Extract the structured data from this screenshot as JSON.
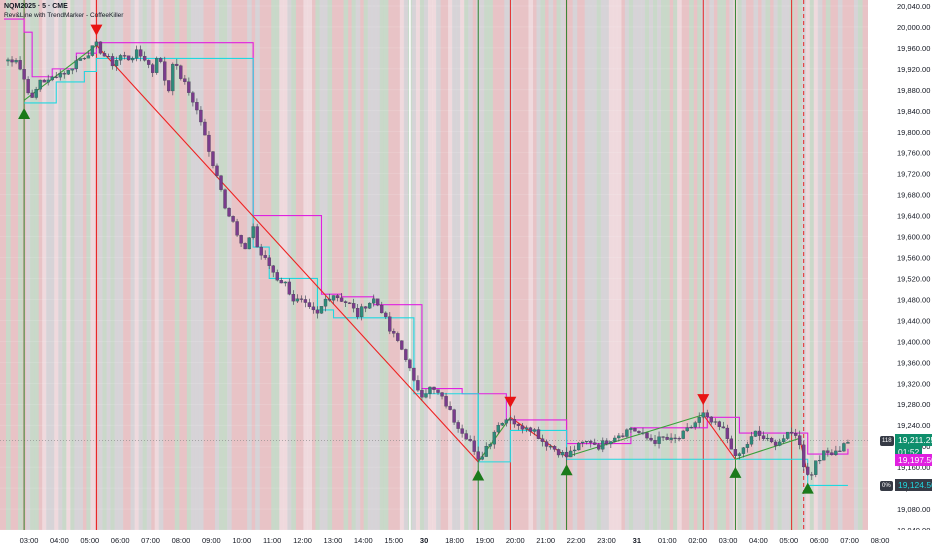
{
  "header": {
    "ticker": "NQM2025 · 5 · CME",
    "indicator": "Rev&Line with TrendMarker - CoffeeKiller"
  },
  "colors": {
    "bull": "#26a69a",
    "bear": "#ef5350",
    "wick": "#4a4f5c",
    "bullish_signal": "#1b7a1b",
    "bearish_signal": "#e81313",
    "magenta_level": "#e020e0",
    "cyan_level": "#20d8e0",
    "trend_down": "#ee2222",
    "trend_up": "#3aa03a",
    "bg_red": "#e8c3c6",
    "bg_green": "#c4dcc9",
    "bg_gray": "#d4d6d9"
  },
  "price_tags": {
    "current_price": "19,211.25",
    "countdown": "01:52",
    "magenta_level": "19,197.50",
    "cyan_level": "19,124.50",
    "mini_top": "118",
    "mini_bottom": "0%"
  },
  "chart_data": {
    "type": "candlestick",
    "title": "NQM2025 · 5 · CME",
    "ylim": [
      19040,
      20040
    ],
    "y_ticks": [
      "20,040.00",
      "20,000.00",
      "19,960.00",
      "19,920.00",
      "19,880.00",
      "19,840.00",
      "19,800.00",
      "19,760.00",
      "19,720.00",
      "19,680.00",
      "19,640.00",
      "19,600.00",
      "19,560.00",
      "19,520.00",
      "19,480.00",
      "19,440.00",
      "19,400.00",
      "19,360.00",
      "19,320.00",
      "19,280.00",
      "19,240.00",
      "19,200.00",
      "19,160.00",
      "19,120.00",
      "19,080.00",
      "19,040.00"
    ],
    "x_ticks": [
      "03:00",
      "04:00",
      "05:00",
      "06:00",
      "07:00",
      "08:00",
      "09:00",
      "10:00",
      "11:00",
      "12:00",
      "13:00",
      "14:00",
      "15:00",
      "30",
      "18:00",
      "19:00",
      "20:00",
      "21:00",
      "22:00",
      "23:00",
      "31",
      "01:00",
      "02:00",
      "03:00",
      "04:00",
      "05:00",
      "06:00",
      "07:00",
      "08:00"
    ],
    "price_path": [
      [
        0,
        19935
      ],
      [
        3,
        19940
      ],
      [
        5,
        19900
      ],
      [
        7,
        19860
      ],
      [
        8,
        19880
      ],
      [
        9,
        19900
      ],
      [
        11,
        19895
      ],
      [
        13,
        19910
      ],
      [
        16,
        19915
      ],
      [
        18,
        19935
      ],
      [
        20,
        19945
      ],
      [
        23,
        19965
      ],
      [
        25,
        19945
      ],
      [
        27,
        19930
      ],
      [
        29,
        19945
      ],
      [
        31,
        19940
      ],
      [
        33,
        19950
      ],
      [
        35,
        19940
      ],
      [
        37,
        19915
      ],
      [
        38,
        19945
      ],
      [
        39,
        19930
      ],
      [
        40,
        19900
      ],
      [
        41,
        19880
      ],
      [
        42,
        19935
      ],
      [
        43,
        19920
      ],
      [
        45,
        19890
      ],
      [
        47,
        19860
      ],
      [
        49,
        19820
      ],
      [
        51,
        19760
      ],
      [
        53,
        19720
      ],
      [
        55,
        19660
      ],
      [
        57,
        19630
      ],
      [
        58,
        19600
      ],
      [
        60,
        19570
      ],
      [
        61,
        19600
      ],
      [
        62,
        19620
      ],
      [
        63,
        19580
      ],
      [
        64,
        19565
      ],
      [
        66,
        19545
      ],
      [
        68,
        19520
      ],
      [
        70,
        19510
      ],
      [
        72,
        19480
      ],
      [
        74,
        19475
      ],
      [
        76,
        19460
      ],
      [
        78,
        19450
      ],
      [
        80,
        19480
      ],
      [
        82,
        19490
      ],
      [
        84,
        19480
      ],
      [
        86,
        19470
      ],
      [
        88,
        19450
      ],
      [
        90,
        19470
      ],
      [
        92,
        19480
      ],
      [
        94,
        19460
      ],
      [
        96,
        19420
      ],
      [
        98,
        19400
      ],
      [
        100,
        19370
      ],
      [
        102,
        19320
      ],
      [
        104,
        19300
      ],
      [
        106,
        19310
      ],
      [
        108,
        19300
      ],
      [
        110,
        19280
      ],
      [
        112,
        19250
      ],
      [
        114,
        19230
      ],
      [
        116,
        19210
      ],
      [
        117,
        19185
      ],
      [
        118,
        19170
      ],
      [
        119,
        19185
      ],
      [
        120,
        19200
      ],
      [
        121,
        19210
      ],
      [
        122,
        19230
      ],
      [
        124,
        19250
      ],
      [
        126,
        19255
      ],
      [
        127,
        19245
      ],
      [
        128,
        19235
      ],
      [
        130,
        19240
      ],
      [
        132,
        19230
      ],
      [
        134,
        19210
      ],
      [
        136,
        19200
      ],
      [
        138,
        19190
      ],
      [
        140,
        19180
      ],
      [
        142,
        19195
      ],
      [
        144,
        19205
      ],
      [
        146,
        19210
      ],
      [
        148,
        19200
      ],
      [
        150,
        19210
      ],
      [
        152,
        19220
      ],
      [
        154,
        19225
      ],
      [
        156,
        19235
      ],
      [
        158,
        19225
      ],
      [
        160,
        19215
      ],
      [
        162,
        19210
      ],
      [
        164,
        19215
      ],
      [
        166,
        19210
      ],
      [
        168,
        19215
      ],
      [
        170,
        19230
      ],
      [
        172,
        19245
      ],
      [
        174,
        19260
      ],
      [
        175,
        19250
      ],
      [
        177,
        19240
      ],
      [
        179,
        19230
      ],
      [
        181,
        19200
      ],
      [
        182,
        19175
      ],
      [
        183,
        19185
      ],
      [
        185,
        19205
      ],
      [
        187,
        19225
      ],
      [
        189,
        19215
      ],
      [
        191,
        19205
      ],
      [
        193,
        19210
      ],
      [
        195,
        19220
      ],
      [
        197,
        19225
      ],
      [
        198,
        19200
      ],
      [
        199,
        19165
      ],
      [
        200,
        19150
      ],
      [
        201,
        19145
      ],
      [
        202,
        19175
      ],
      [
        204,
        19185
      ],
      [
        206,
        19190
      ],
      [
        208,
        19195
      ],
      [
        210,
        19211
      ]
    ],
    "signals": [
      {
        "type": "bullish",
        "index": 5,
        "price": 19855
      },
      {
        "type": "bearish",
        "index": 23,
        "price": 19970
      },
      {
        "type": "bullish",
        "index": 118,
        "price": 19165
      },
      {
        "type": "bearish",
        "index": 126,
        "price": 19260
      },
      {
        "type": "bullish",
        "index": 140,
        "price": 19175
      },
      {
        "type": "bearish",
        "index": 174,
        "price": 19265
      },
      {
        "type": "bullish",
        "index": 182,
        "price": 19170
      },
      {
        "type": "bullish",
        "index": 200,
        "price": 19140
      }
    ],
    "trend_lines": [
      {
        "type": "up",
        "from": [
          5,
          19860
        ],
        "to": [
          23,
          19965
        ]
      },
      {
        "type": "down",
        "from": [
          23,
          19965
        ],
        "to": [
          118,
          19170
        ]
      },
      {
        "type": "up",
        "from": [
          118,
          19170
        ],
        "to": [
          126,
          19255
        ]
      },
      {
        "type": "down",
        "from": [
          126,
          19255
        ],
        "to": [
          140,
          19180
        ]
      },
      {
        "type": "up",
        "from": [
          140,
          19180
        ],
        "to": [
          174,
          19260
        ]
      },
      {
        "type": "down",
        "from": [
          174,
          19260
        ],
        "to": [
          182,
          19175
        ]
      },
      {
        "type": "up",
        "from": [
          182,
          19175
        ],
        "to": [
          198,
          19215
        ]
      },
      {
        "type": "down",
        "from": [
          198,
          19215
        ],
        "to": [
          200,
          19145
        ]
      }
    ],
    "magenta_steps": [
      [
        0,
        20015
      ],
      [
        5,
        19990
      ],
      [
        7,
        19905
      ],
      [
        12,
        19920
      ],
      [
        18,
        19950
      ],
      [
        23,
        19970
      ],
      [
        45,
        19970
      ],
      [
        61,
        19970
      ],
      [
        62,
        19640
      ],
      [
        78,
        19640
      ],
      [
        79,
        19490
      ],
      [
        82,
        19490
      ],
      [
        84,
        19485
      ],
      [
        90,
        19485
      ],
      [
        92,
        19470
      ],
      [
        103,
        19470
      ],
      [
        104,
        19310
      ],
      [
        113,
        19310
      ],
      [
        114,
        19300
      ],
      [
        124,
        19300
      ],
      [
        125,
        19250
      ],
      [
        129,
        19250
      ],
      [
        130,
        19250
      ],
      [
        139,
        19250
      ],
      [
        140,
        19205
      ],
      [
        154,
        19205
      ],
      [
        156,
        19235
      ],
      [
        174,
        19235
      ],
      [
        175,
        19255
      ],
      [
        182,
        19255
      ],
      [
        183,
        19225
      ],
      [
        199,
        19225
      ],
      [
        200,
        19185
      ],
      [
        210,
        19195
      ]
    ],
    "cyan_steps": [
      [
        5,
        19855
      ],
      [
        12,
        19855
      ],
      [
        13,
        19895
      ],
      [
        18,
        19895
      ],
      [
        20,
        19915
      ],
      [
        23,
        19940
      ],
      [
        62,
        19580
      ],
      [
        65,
        19580
      ],
      [
        66,
        19520
      ],
      [
        78,
        19460
      ],
      [
        80,
        19460
      ],
      [
        82,
        19445
      ],
      [
        102,
        19300
      ],
      [
        110,
        19300
      ],
      [
        118,
        19170
      ],
      [
        122,
        19170
      ],
      [
        126,
        19230
      ],
      [
        140,
        19175
      ],
      [
        156,
        19175
      ],
      [
        157,
        19175
      ],
      [
        182,
        19175
      ],
      [
        200,
        19125
      ],
      [
        210,
        19125
      ]
    ],
    "vertical_markers": [
      {
        "type": "bullish",
        "index": 5
      },
      {
        "type": "bearish",
        "index": 23
      },
      {
        "type": "session",
        "index": 101
      },
      {
        "type": "bullish",
        "index": 118
      },
      {
        "type": "bearish",
        "index": 126
      },
      {
        "type": "bullish",
        "index": 140
      },
      {
        "type": "bearish",
        "index": 174
      },
      {
        "type": "bullish",
        "index": 182
      },
      {
        "type": "bearish",
        "index": 196
      },
      {
        "type": "bearish-dashed",
        "index": 199
      }
    ]
  }
}
